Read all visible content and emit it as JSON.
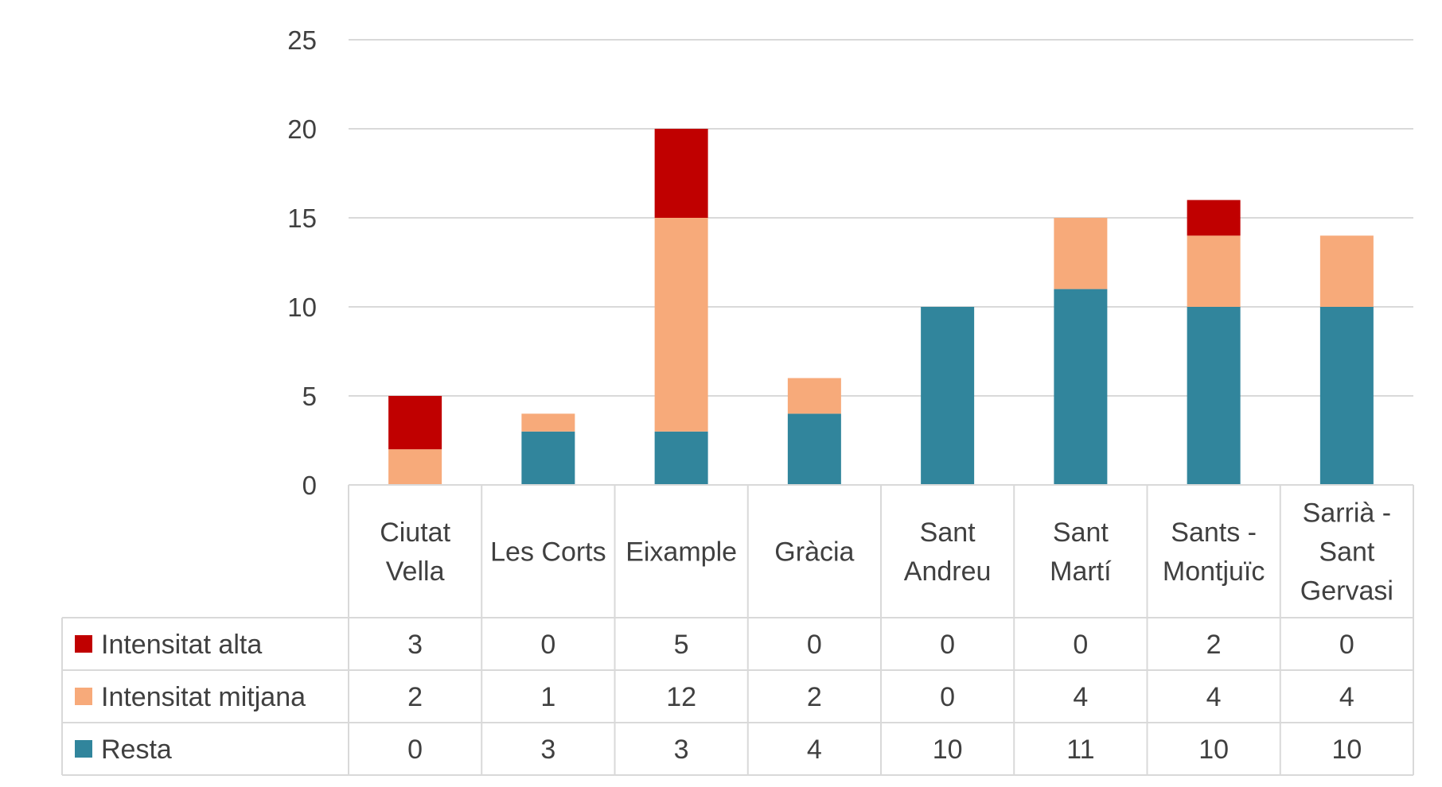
{
  "chart_data": {
    "type": "bar",
    "stacked": true,
    "categories": [
      [
        "Ciutat",
        "Vella"
      ],
      [
        "Les Corts"
      ],
      [
        "Eixample"
      ],
      [
        "Gràcia"
      ],
      [
        "Sant",
        "Andreu"
      ],
      [
        "Sant",
        "Martí"
      ],
      [
        "Sants -",
        "Montjuïc"
      ],
      [
        "Sarrià -",
        "Sant",
        "Gervasi"
      ]
    ],
    "series": [
      {
        "name": "Resta",
        "color": "#31859C",
        "values": [
          0,
          3,
          3,
          4,
          10,
          11,
          10,
          10
        ]
      },
      {
        "name": "Intensitat mitjana",
        "color": "#F7AA7A",
        "values": [
          2,
          1,
          12,
          2,
          0,
          4,
          4,
          4
        ]
      },
      {
        "name": "Intensitat alta",
        "color": "#C00000",
        "values": [
          3,
          0,
          5,
          0,
          0,
          0,
          2,
          0
        ]
      }
    ],
    "table_row_order": [
      "Intensitat alta",
      "Intensitat mitjana",
      "Resta"
    ],
    "yticks": [
      0,
      5,
      10,
      15,
      20,
      25
    ],
    "ylim": [
      0,
      25
    ],
    "grid": true,
    "legend": "data-table",
    "title": "",
    "xlabel": "",
    "ylabel": ""
  }
}
